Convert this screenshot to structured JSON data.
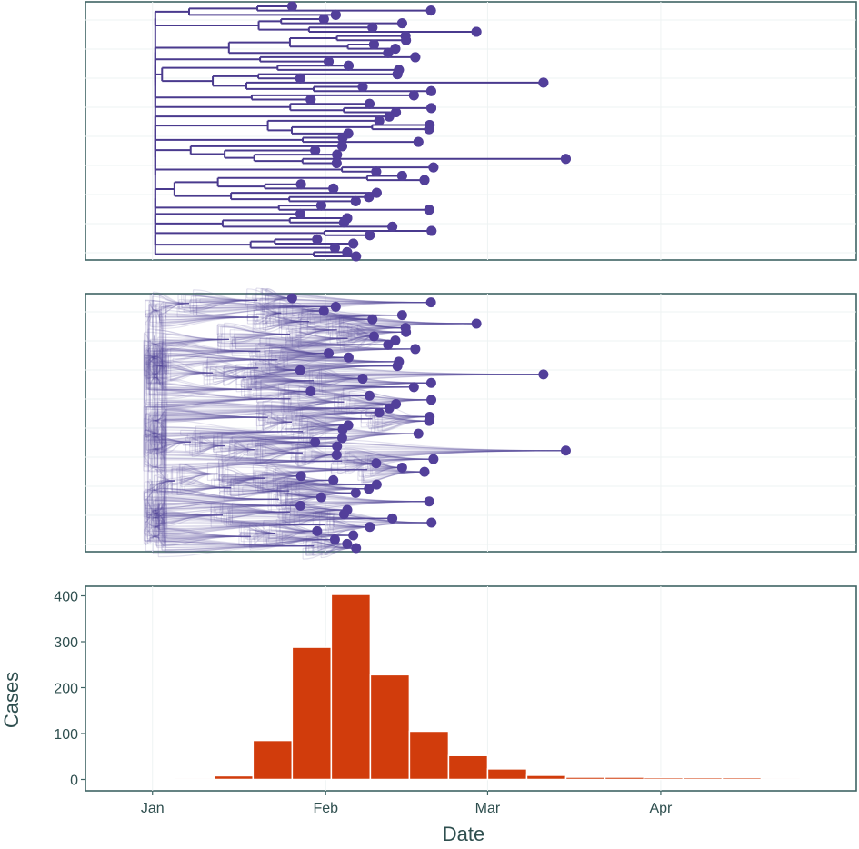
{
  "chart_data": [
    {
      "type": "tree",
      "panel": "maximum-clade-credibility tree",
      "tip_count": 60,
      "tip_date_range": [
        "Jan 25",
        "Mar 10"
      ],
      "colors": {
        "branch": "#4a3a8e",
        "tip": "#523f9a"
      }
    },
    {
      "type": "tree",
      "panel": "densitree of posterior trees",
      "tip_count": 60,
      "tip_date_range": [
        "Jan 25",
        "Mar 10"
      ],
      "colors": {
        "branch": "#5a4c9e",
        "tip": "#523f9a"
      }
    },
    {
      "type": "bar",
      "xlabel": "Date",
      "ylabel": "Cases",
      "ylim": [
        0,
        420
      ],
      "y_ticks": [
        0,
        100,
        200,
        300,
        400
      ],
      "x_ticks": [
        "Jan",
        "Feb",
        "Mar",
        "Apr"
      ],
      "categories": [
        "Jan 5",
        "Jan 12",
        "Jan 19",
        "Jan 26",
        "Feb 2",
        "Feb 9",
        "Feb 16",
        "Feb 23",
        "Mar 1",
        "Mar 8",
        "Mar 15",
        "Mar 22",
        "Mar 29",
        "Apr 5",
        "Apr 12",
        "Apr 19"
      ],
      "values": [
        3,
        8,
        85,
        288,
        403,
        228,
        105,
        52,
        23,
        9,
        5,
        5,
        4,
        4,
        4,
        3
      ],
      "colors": {
        "bar": "#d13c0c"
      }
    }
  ]
}
